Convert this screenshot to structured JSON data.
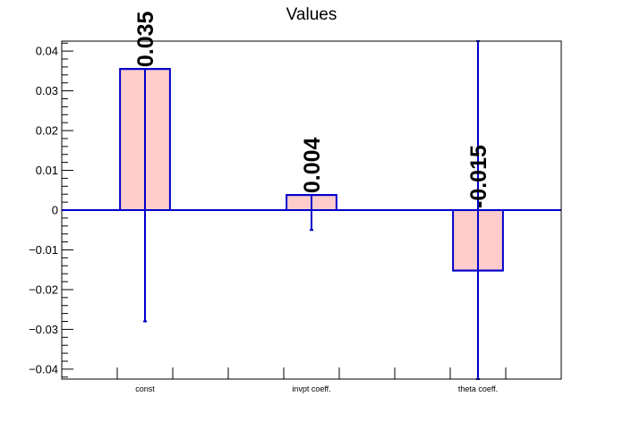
{
  "chart_data": {
    "type": "bar",
    "title": "Values",
    "categories": [
      "const",
      "invpt coeff.",
      "theta coeff."
    ],
    "values": [
      0.0355,
      0.0038,
      -0.0152
    ],
    "value_labels": [
      "0.035",
      "0.004",
      "-0.015"
    ],
    "error_low": [
      -0.028,
      -0.005,
      -0.0425
    ],
    "error_high": [
      0.0355,
      0.0038,
      0.0425
    ],
    "ylim": [
      -0.0425,
      0.0425
    ],
    "yticks": [
      -0.04,
      -0.03,
      -0.02,
      -0.01,
      0,
      0.01,
      0.02,
      0.03,
      0.04
    ],
    "ytick_labels": [
      "−0.04",
      "−0.03",
      "−0.02",
      "−0.01",
      "0",
      "0.01",
      "0.02",
      "0.03",
      "0.04"
    ],
    "xlabel": "",
    "ylabel": "",
    "grid": false,
    "legend": "none",
    "colors": {
      "bar_fill": "#ffcccc",
      "bar_edge": "#0000cc",
      "axis": "#000000"
    }
  }
}
